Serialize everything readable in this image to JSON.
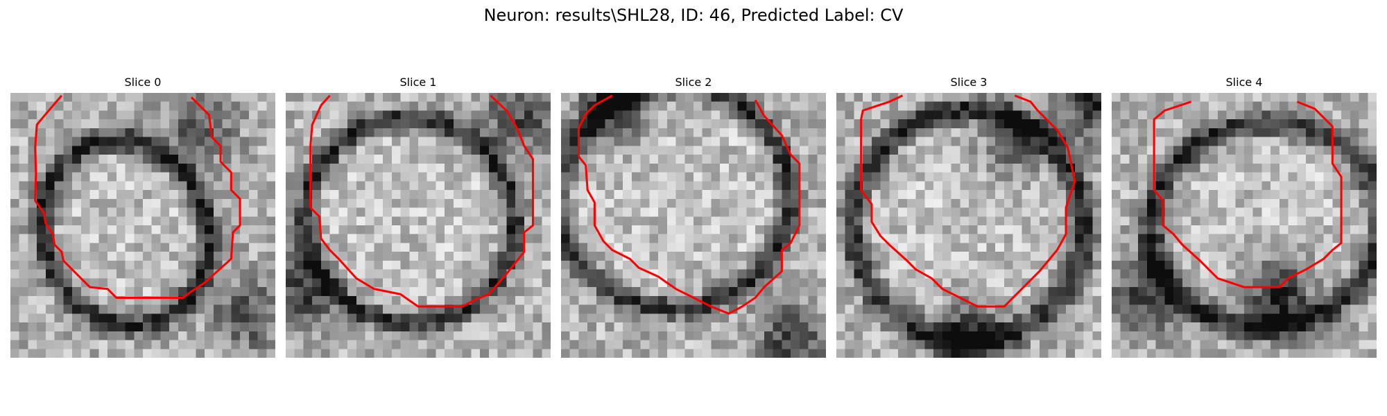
{
  "figure": {
    "title": "Neuron: results\\SHL28, ID: 46, Predicted Label: CV"
  },
  "colors": {
    "contour": "#ff0000",
    "background": "#ffffff"
  },
  "slices": [
    {
      "label": "Slice 0"
    },
    {
      "label": "Slice 1"
    },
    {
      "label": "Slice 2"
    },
    {
      "label": "Slice 3"
    },
    {
      "label": "Slice 4"
    }
  ]
}
